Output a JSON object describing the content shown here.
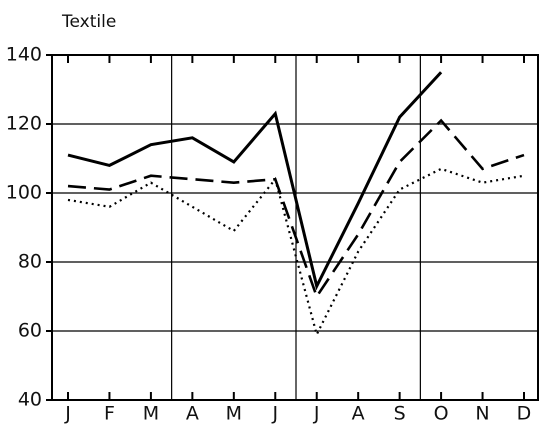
{
  "chart_data": {
    "type": "line",
    "title": "Textile",
    "categories": [
      "J",
      "F",
      "M",
      "A",
      "M",
      "J",
      "J",
      "A",
      "S",
      "O",
      "N",
      "D"
    ],
    "series": [
      {
        "color": "#000000",
        "linestyle": "solid",
        "values": [
          111,
          108,
          114,
          116,
          109,
          123,
          73,
          97,
          122,
          135,
          null,
          null
        ]
      },
      {
        "color": "#000000",
        "linestyle": "dashed",
        "values": [
          102,
          101,
          105,
          104,
          103,
          104,
          70,
          88,
          109,
          121,
          107,
          111
        ]
      },
      {
        "color": "#000000",
        "linestyle": "dotted",
        "values": [
          98,
          96,
          103,
          96,
          89,
          104,
          59,
          83,
          101,
          107,
          103,
          105
        ]
      }
    ],
    "ylim": [
      40,
      140
    ],
    "yticks": [
      40,
      60,
      80,
      100,
      120,
      140
    ],
    "grid": true
  }
}
